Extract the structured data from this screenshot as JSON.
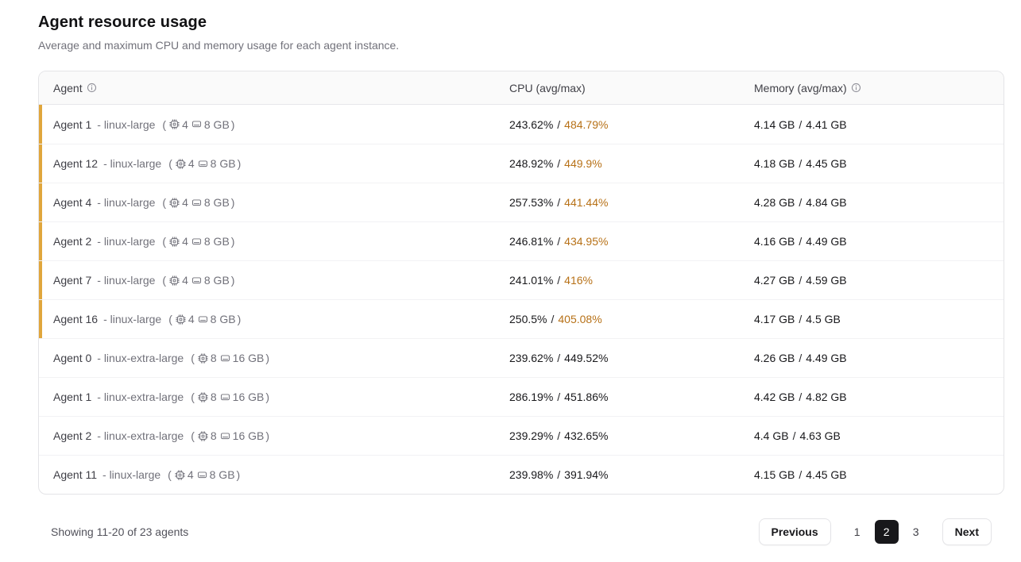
{
  "header": {
    "title": "Agent resource usage",
    "subtitle": "Average and maximum CPU and memory usage for each agent instance."
  },
  "glyphs": {
    "open_paren": "(",
    "close_paren": ")",
    "slash": "/"
  },
  "table": {
    "columns": {
      "agent": "Agent",
      "cpu": "CPU (avg/max)",
      "memory": "Memory (avg/max)"
    },
    "rows": [
      {
        "name": "Agent 1",
        "flavor": "- linux-large",
        "cpus": "4",
        "mem": "8 GB",
        "cpu_avg": "243.62%",
        "cpu_max": "484.79%",
        "mem_avg": "4.14 GB",
        "mem_max": "4.41 GB",
        "cpu_warning": true
      },
      {
        "name": "Agent 12",
        "flavor": "- linux-large",
        "cpus": "4",
        "mem": "8 GB",
        "cpu_avg": "248.92%",
        "cpu_max": "449.9%",
        "mem_avg": "4.18 GB",
        "mem_max": "4.45 GB",
        "cpu_warning": true
      },
      {
        "name": "Agent 4",
        "flavor": "- linux-large",
        "cpus": "4",
        "mem": "8 GB",
        "cpu_avg": "257.53%",
        "cpu_max": "441.44%",
        "mem_avg": "4.28 GB",
        "mem_max": "4.84 GB",
        "cpu_warning": true
      },
      {
        "name": "Agent 2",
        "flavor": "- linux-large",
        "cpus": "4",
        "mem": "8 GB",
        "cpu_avg": "246.81%",
        "cpu_max": "434.95%",
        "mem_avg": "4.16 GB",
        "mem_max": "4.49 GB",
        "cpu_warning": true
      },
      {
        "name": "Agent 7",
        "flavor": "- linux-large",
        "cpus": "4",
        "mem": "8 GB",
        "cpu_avg": "241.01%",
        "cpu_max": "416%",
        "mem_avg": "4.27 GB",
        "mem_max": "4.59 GB",
        "cpu_warning": true
      },
      {
        "name": "Agent 16",
        "flavor": "- linux-large",
        "cpus": "4",
        "mem": "8 GB",
        "cpu_avg": "250.5%",
        "cpu_max": "405.08%",
        "mem_avg": "4.17 GB",
        "mem_max": "4.5 GB",
        "cpu_warning": true
      },
      {
        "name": "Agent 0",
        "flavor": "- linux-extra-large",
        "cpus": "8",
        "mem": "16 GB",
        "cpu_avg": "239.62%",
        "cpu_max": "449.52%",
        "mem_avg": "4.26 GB",
        "mem_max": "4.49 GB",
        "cpu_warning": false
      },
      {
        "name": "Agent 1",
        "flavor": "- linux-extra-large",
        "cpus": "8",
        "mem": "16 GB",
        "cpu_avg": "286.19%",
        "cpu_max": "451.86%",
        "mem_avg": "4.42 GB",
        "mem_max": "4.82 GB",
        "cpu_warning": false
      },
      {
        "name": "Agent 2",
        "flavor": "- linux-extra-large",
        "cpus": "8",
        "mem": "16 GB",
        "cpu_avg": "239.29%",
        "cpu_max": "432.65%",
        "mem_avg": "4.4 GB",
        "mem_max": "4.63 GB",
        "cpu_warning": false
      },
      {
        "name": "Agent 11",
        "flavor": "- linux-large",
        "cpus": "4",
        "mem": "8 GB",
        "cpu_avg": "239.98%",
        "cpu_max": "391.94%",
        "mem_avg": "4.15 GB",
        "mem_max": "4.45 GB",
        "cpu_warning": false
      }
    ]
  },
  "footer": {
    "showing": "Showing 11-20 of 23 agents",
    "previous_label": "Previous",
    "next_label": "Next",
    "pages": {
      "p1": "1",
      "p2": "2",
      "p3": "3"
    },
    "current_page": "2"
  },
  "colors": {
    "warn_bar": "#E0A63C",
    "warn_text": "#B77117",
    "active_page_bg": "#18181B",
    "header_bg": "#FAFAFA"
  }
}
